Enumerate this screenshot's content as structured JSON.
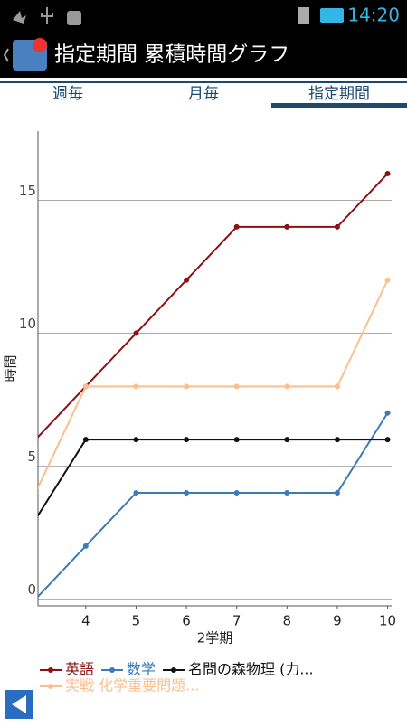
{
  "status_bar": {
    "time": "14:20"
  },
  "header": {
    "title": "指定期間 累積時間グラフ"
  },
  "tabs": [
    {
      "label": "週毎",
      "selected": false
    },
    {
      "label": "月毎",
      "selected": false
    },
    {
      "label": "指定期間",
      "selected": true
    }
  ],
  "chart_data": {
    "type": "line",
    "x_label": "2学期",
    "y_label": "時間",
    "x": [
      3,
      4,
      5,
      6,
      7,
      8,
      9,
      10
    ],
    "series": [
      {
        "name": "英語",
        "color": "#8b1212",
        "values": [
          6,
          8,
          10,
          12,
          14,
          14,
          14,
          16
        ]
      },
      {
        "name": "数学",
        "color": "#3a7bb8",
        "values": [
          0,
          2,
          4,
          4,
          4,
          4,
          4,
          7
        ]
      },
      {
        "name": "名問の森物理 (力...",
        "color": "#111111",
        "values": [
          3,
          6,
          6,
          6,
          6,
          6,
          6,
          6
        ]
      },
      {
        "name": "実戦 化学重要問題...",
        "color": "#fbbf8f",
        "values": [
          4,
          8,
          8,
          8,
          8,
          8,
          8,
          12
        ]
      }
    ],
    "xlim": [
      3.05,
      10.08
    ],
    "ylim": [
      -0.25,
      17.6
    ],
    "xticks": [
      4,
      5,
      6,
      7,
      8,
      9,
      10
    ],
    "yticks": [
      0,
      5,
      10,
      15
    ],
    "grid": true
  }
}
